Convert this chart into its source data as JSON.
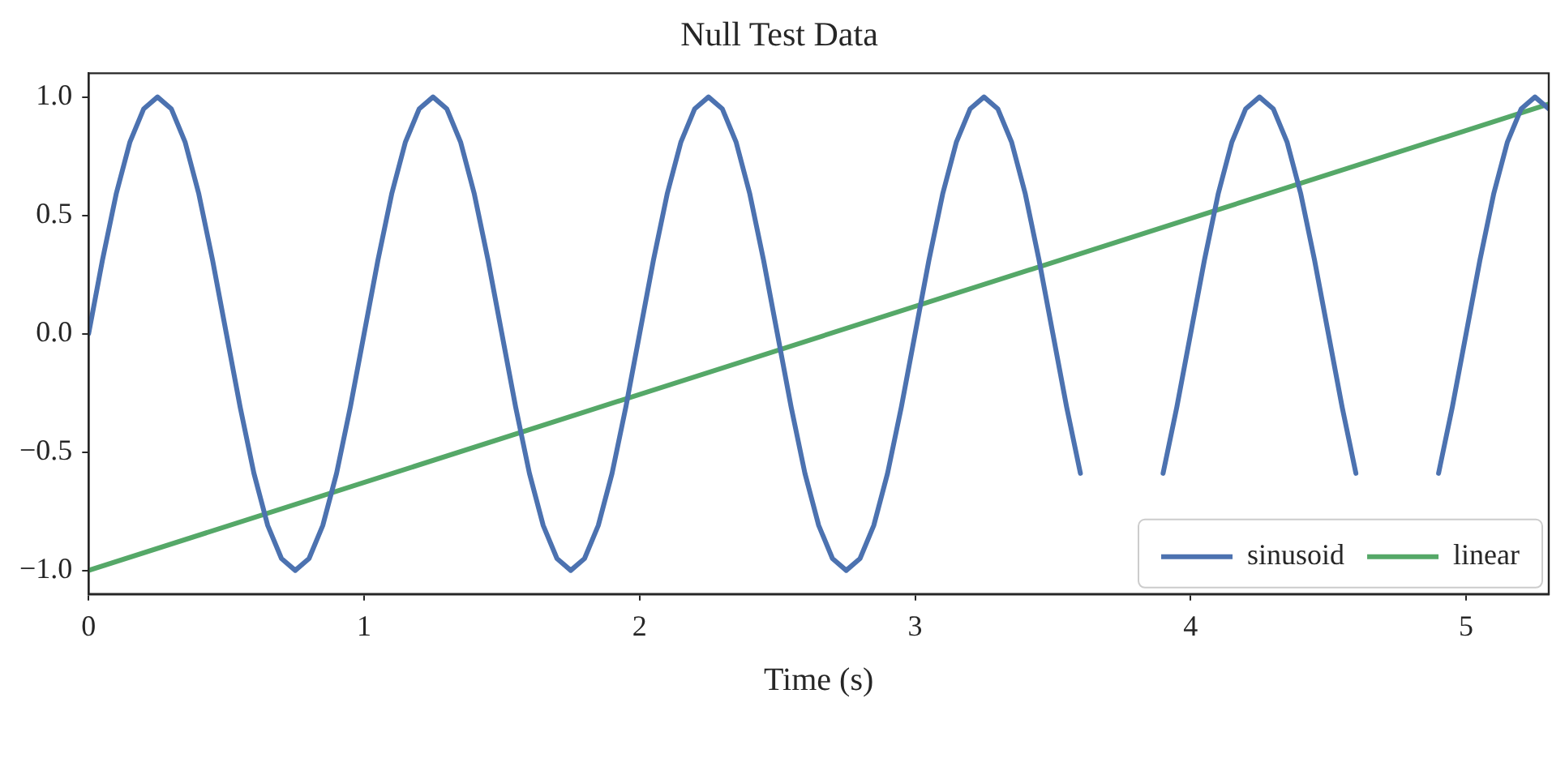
{
  "chart_data": {
    "type": "line",
    "title": "Null Test Data",
    "xlabel": "Time (s)",
    "xlim": [
      0,
      5.3
    ],
    "xticks": [
      0,
      1,
      2,
      3,
      4,
      5
    ],
    "ylim": [
      -1.1,
      1.1
    ],
    "yticks": [
      {
        "value": -1,
        "label": "−1.0"
      },
      {
        "value": -0.5,
        "label": "−0.5"
      },
      {
        "value": 0,
        "label": "0.0"
      },
      {
        "value": 0.5,
        "label": "0.5"
      },
      {
        "value": 1,
        "label": "1.0"
      }
    ],
    "grid": false,
    "legend": "bottom right",
    "marker": "none",
    "line_style": "solid",
    "series": [
      {
        "name": "sinusoid",
        "color": "#4c72b0",
        "x": [
          0,
          0.05,
          0.1,
          0.15,
          0.2,
          0.25,
          0.3,
          0.35,
          0.4,
          0.45,
          0.5,
          0.55,
          0.6,
          0.65,
          0.7,
          0.75,
          0.8,
          0.85,
          0.9,
          0.95,
          1,
          1.05,
          1.1,
          1.15,
          1.2,
          1.25,
          1.3,
          1.35,
          1.4,
          1.45,
          1.5,
          1.55,
          1.6,
          1.65,
          1.7,
          1.75,
          1.8,
          1.85,
          1.9,
          1.95,
          2,
          2.05,
          2.1,
          2.15,
          2.2,
          2.25,
          2.3,
          2.35,
          2.4,
          2.45,
          2.5,
          2.55,
          2.6,
          2.65,
          2.7,
          2.75,
          2.8,
          2.85,
          2.9,
          2.95,
          3,
          3.05,
          3.1,
          3.15,
          3.2,
          3.25,
          3.3,
          3.35,
          3.4,
          3.45,
          3.5,
          3.55,
          3.6,
          3.65,
          3.7,
          3.75,
          3.8,
          3.85,
          3.9,
          3.95,
          4,
          4.05,
          4.1,
          4.15,
          4.2,
          4.25,
          4.3,
          4.35,
          4.4,
          4.45,
          4.5,
          4.55,
          4.6,
          4.65,
          4.7,
          4.75,
          4.8,
          4.85,
          4.9,
          4.95,
          5,
          5.05,
          5.1,
          5.15,
          5.2,
          5.25,
          5.3
        ],
        "values": [
          0,
          0.31,
          0.59,
          0.81,
          0.95,
          1,
          0.95,
          0.81,
          0.59,
          0.31,
          0,
          -0.31,
          -0.59,
          -0.81,
          -0.95,
          -1,
          -0.95,
          -0.81,
          -0.59,
          -0.31,
          0,
          0.31,
          0.59,
          0.81,
          0.95,
          1,
          0.95,
          0.81,
          0.59,
          0.31,
          0,
          -0.31,
          -0.59,
          -0.81,
          -0.95,
          -1,
          -0.95,
          -0.81,
          -0.59,
          -0.31,
          0,
          0.31,
          0.59,
          0.81,
          0.95,
          1,
          0.95,
          0.81,
          0.59,
          0.31,
          0,
          -0.31,
          -0.59,
          -0.81,
          -0.95,
          -1,
          -0.95,
          -0.81,
          -0.59,
          -0.31,
          0,
          0.31,
          0.59,
          0.81,
          0.95,
          1,
          0.95,
          0.81,
          0.59,
          0.31,
          0,
          -0.31,
          -0.59,
          null,
          null,
          null,
          null,
          null,
          -0.59,
          -0.31,
          0,
          0.31,
          0.59,
          0.81,
          0.95,
          1,
          0.95,
          0.81,
          0.59,
          0.31,
          0,
          -0.31,
          -0.59,
          null,
          null,
          null,
          null,
          null,
          -0.59,
          -0.31,
          0,
          0.31,
          0.59,
          0.81,
          0.95,
          1,
          0.95
        ]
      },
      {
        "name": "linear",
        "color": "#55a868",
        "x": [
          0,
          5.3
        ],
        "values": [
          -1,
          0.97
        ]
      }
    ]
  }
}
